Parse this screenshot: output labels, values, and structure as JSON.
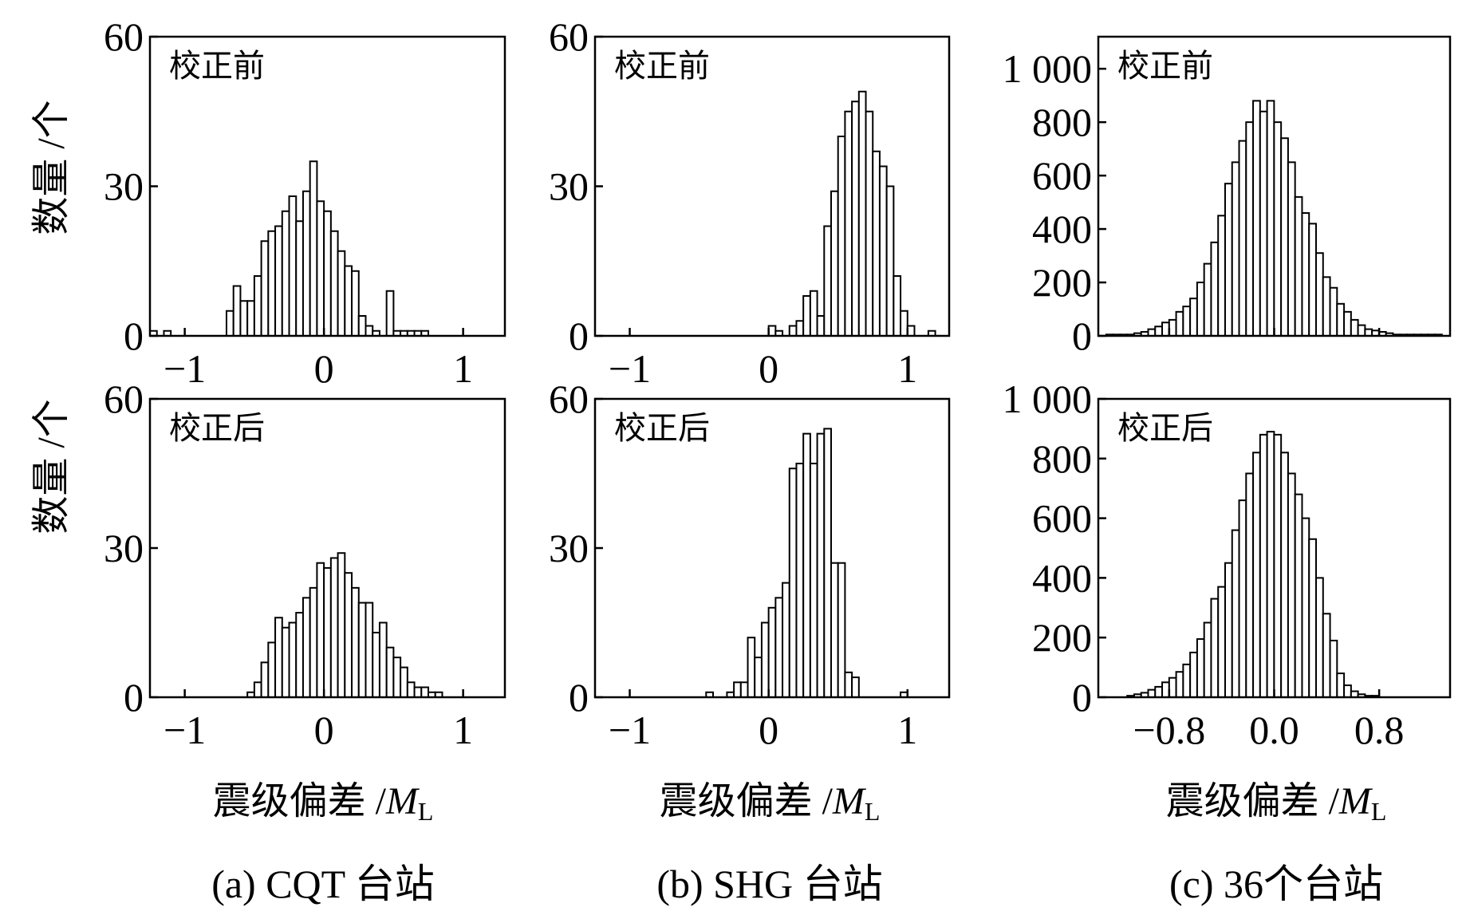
{
  "y_axis_title": "数量 /个",
  "x_axis_title_prefix": "震级偏差 /",
  "x_axis_title_var": "M",
  "x_axis_title_sub": "L",
  "captions": [
    "(a) CQT 台站",
    "(b) SHG 台站",
    "(c) 36个台站"
  ],
  "chart_data": [
    {
      "type": "bar",
      "station": "CQT",
      "panel_label": "校正前",
      "xlim": [
        -1.25,
        1.3
      ],
      "ylim": [
        0,
        60
      ],
      "xticks": [
        -1,
        0,
        1
      ],
      "xtick_labels": [
        "−1",
        "0",
        "1"
      ],
      "yticks": [
        0,
        30,
        60
      ],
      "ytick_labels": [
        "0",
        "30",
        "60"
      ],
      "bin_start": -1.25,
      "bin_width": 0.05,
      "values": [
        1,
        0,
        1,
        0,
        0,
        0,
        0,
        0,
        0,
        0,
        0,
        5,
        10,
        7,
        7,
        12,
        19,
        21,
        22,
        25,
        28,
        23,
        29,
        35,
        27,
        25,
        21,
        17,
        14,
        13,
        4,
        2,
        1,
        0,
        9,
        1,
        1,
        1,
        1,
        1,
        0,
        0,
        0,
        0,
        0,
        0,
        0,
        0,
        0,
        0,
        0
      ]
    },
    {
      "type": "bar",
      "station": "SHG",
      "panel_label": "校正前",
      "xlim": [
        -1.25,
        1.3
      ],
      "ylim": [
        0,
        60
      ],
      "xticks": [
        -1,
        0,
        1
      ],
      "xtick_labels": [
        "−1",
        "0",
        "1"
      ],
      "yticks": [
        0,
        30,
        60
      ],
      "ytick_labels": [
        "0",
        "30",
        "60"
      ],
      "bin_start": -0.05,
      "bin_width": 0.05,
      "values": [
        0,
        2,
        1,
        0,
        2,
        3,
        8,
        9,
        4,
        22,
        29,
        40,
        45,
        47,
        49,
        45,
        37,
        34,
        30,
        12,
        5,
        2,
        0,
        0,
        1
      ]
    },
    {
      "type": "bar",
      "station": "36个",
      "panel_label": "校正前",
      "xlim": [
        -1.34,
        1.34
      ],
      "ylim": [
        0,
        1120
      ],
      "xticks": [
        -0.8,
        0.0,
        0.8
      ],
      "xtick_labels": [],
      "yticks": [
        0,
        200,
        400,
        600,
        800,
        1000
      ],
      "ytick_labels": [
        "0",
        "200",
        "400",
        "600",
        "800",
        "1 000"
      ],
      "bin_start": -1.28,
      "bin_width": 0.0533,
      "values": [
        5,
        5,
        5,
        5,
        10,
        15,
        25,
        35,
        50,
        60,
        90,
        110,
        140,
        200,
        270,
        350,
        450,
        570,
        650,
        730,
        800,
        880,
        840,
        880,
        800,
        740,
        650,
        520,
        460,
        420,
        310,
        220,
        180,
        120,
        90,
        60,
        40,
        25,
        20,
        15,
        10,
        5,
        5,
        5,
        5,
        5,
        5,
        5
      ]
    },
    {
      "type": "bar",
      "station": "CQT",
      "panel_label": "校正后",
      "xlim": [
        -1.25,
        1.3
      ],
      "ylim": [
        0,
        60
      ],
      "xticks": [
        -1,
        0,
        1
      ],
      "xtick_labels": [
        "−1",
        "0",
        "1"
      ],
      "yticks": [
        0,
        30,
        60
      ],
      "ytick_labels": [
        "0",
        "30",
        "60"
      ],
      "bin_start": -0.55,
      "bin_width": 0.05,
      "values": [
        1,
        3,
        7,
        11,
        16,
        14,
        15,
        17,
        20,
        22,
        27,
        26,
        28,
        29,
        25,
        22,
        19,
        19,
        13,
        15,
        10,
        8,
        6,
        3,
        2,
        2,
        1,
        1
      ]
    },
    {
      "type": "bar",
      "station": "SHG",
      "panel_label": "校正后",
      "xlim": [
        -1.25,
        1.3
      ],
      "ylim": [
        0,
        60
      ],
      "xticks": [
        -1,
        0,
        1
      ],
      "xtick_labels": [
        "−1",
        "0",
        "1"
      ],
      "yticks": [
        0,
        30,
        60
      ],
      "ytick_labels": [
        "0",
        "30",
        "60"
      ],
      "bin_start": -0.45,
      "bin_width": 0.05,
      "values": [
        1,
        0,
        0,
        1,
        3,
        3,
        12,
        8,
        15,
        18,
        20,
        23,
        46,
        47,
        53,
        47,
        53,
        54,
        27,
        27,
        5,
        4,
        0,
        0,
        0,
        0,
        0,
        0,
        1,
        0
      ]
    },
    {
      "type": "bar",
      "station": "36个",
      "panel_label": "校正后",
      "xlim": [
        -1.34,
        1.34
      ],
      "ylim": [
        0,
        1000
      ],
      "xticks": [
        -0.8,
        0.0,
        0.8
      ],
      "xtick_labels": [
        "−0.8",
        "0.0",
        "0.8"
      ],
      "yticks": [
        0,
        200,
        400,
        600,
        800,
        1000
      ],
      "ytick_labels": [
        "0",
        "200",
        "400",
        "600",
        "800",
        "1 000"
      ],
      "bin_start": -1.12,
      "bin_width": 0.0533,
      "values": [
        5,
        10,
        15,
        25,
        35,
        50,
        65,
        85,
        110,
        150,
        195,
        250,
        330,
        370,
        450,
        560,
        660,
        750,
        820,
        880,
        890,
        880,
        820,
        750,
        680,
        600,
        530,
        400,
        280,
        190,
        80,
        40,
        20,
        10,
        5,
        5
      ]
    }
  ]
}
